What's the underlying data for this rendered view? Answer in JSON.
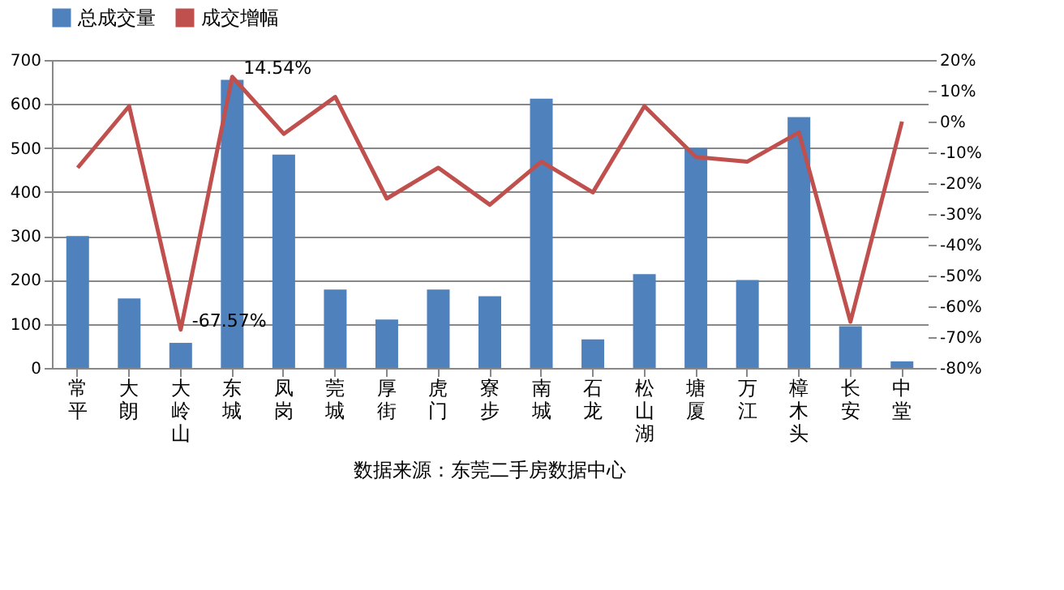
{
  "chart_data": {
    "type": "bar",
    "categories": [
      "常平",
      "大朗",
      "大岭山",
      "东城",
      "凤岗",
      "莞城",
      "厚街",
      "虎门",
      "寮步",
      "南城",
      "石龙",
      "松山湖",
      "塘厦",
      "万江",
      "樟木头",
      "长安",
      "中堂"
    ],
    "series": [
      {
        "name": "总成交量",
        "color": "#4f81bd",
        "values": [
          300,
          158,
          57,
          655,
          485,
          178,
          110,
          178,
          163,
          612,
          65,
          213,
          500,
          200,
          570,
          95,
          15
        ]
      },
      {
        "name": "成交增幅",
        "type": "line",
        "axis": "y2",
        "color": "#c0504d",
        "values": [
          -15,
          5,
          -67.57,
          14.54,
          -4,
          8,
          -25,
          -15,
          -27,
          -13,
          -23,
          5,
          -11.5,
          -13,
          -3.5,
          -65,
          0
        ],
        "value_labels": [
          null,
          null,
          "-67.57%",
          "14.54%",
          null,
          null,
          null,
          null,
          null,
          null,
          null,
          null,
          null,
          null,
          null,
          null,
          null
        ]
      }
    ],
    "ylim": [
      0,
      700
    ],
    "yticks": [
      0,
      100,
      200,
      300,
      400,
      500,
      600,
      700
    ],
    "y2lim": [
      -80,
      20
    ],
    "y2ticks": [
      {
        "value": -80,
        "label": "-80%"
      },
      {
        "value": -70,
        "label": "-70%"
      },
      {
        "value": -60,
        "label": "-60%"
      },
      {
        "value": -50,
        "label": "-50%"
      },
      {
        "value": -40,
        "label": "-40%"
      },
      {
        "value": -30,
        "label": "-30%"
      },
      {
        "value": -20,
        "label": "-20%"
      },
      {
        "value": -10,
        "label": "-10%"
      },
      {
        "value": 0,
        "label": "0%"
      },
      {
        "value": 10,
        "label": "10%"
      },
      {
        "value": 20,
        "label": "20%"
      }
    ],
    "grid": "y",
    "legend": "top",
    "annotations": [
      "数据来源：东莞二手房数据中心"
    ]
  }
}
